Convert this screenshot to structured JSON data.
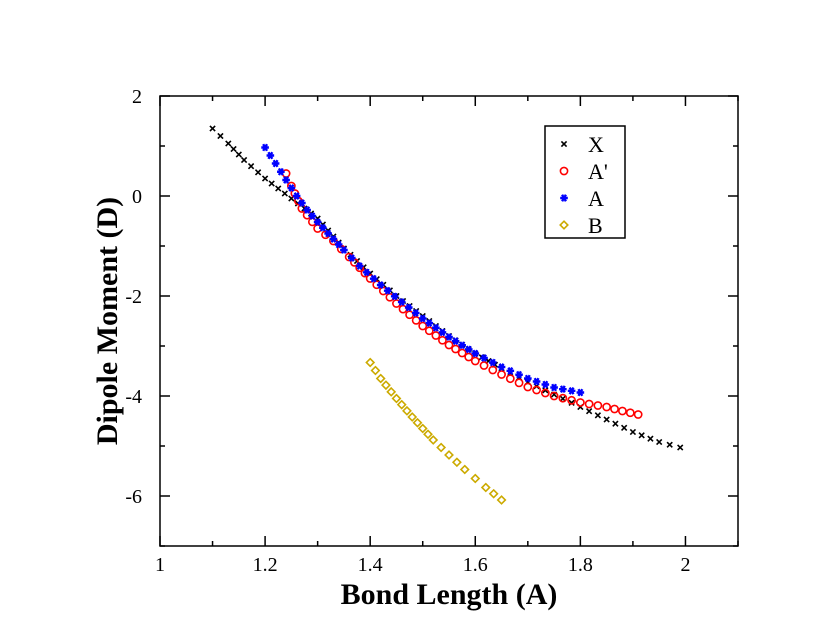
{
  "chart_data": {
    "type": "scatter",
    "title": "",
    "xlabel": "Bond Length (A)",
    "ylabel": "Dipole Moment (D)",
    "xlim": [
      1.0,
      2.1
    ],
    "ylim": [
      -7,
      2
    ],
    "xticks": [
      1,
      1.2,
      1.4,
      1.6,
      1.8,
      2
    ],
    "xtick_labels": [
      "1",
      "1.2",
      "1.4",
      "1.6",
      "1.8",
      "2"
    ],
    "yticks": [
      -6,
      -4,
      -2,
      0,
      2
    ],
    "ytick_labels": [
      "-6",
      "-4",
      "-2",
      "0",
      "2"
    ],
    "grid": false,
    "legend_position": "top-right",
    "series": [
      {
        "name": "X",
        "marker": "x-cross",
        "color": "#000000",
        "x": [
          1.1,
          1.13,
          1.16,
          1.2,
          1.25,
          1.3,
          1.35,
          1.4,
          1.45,
          1.5,
          1.55,
          1.6,
          1.65,
          1.7,
          1.75,
          1.8,
          1.85,
          1.9,
          1.95,
          1.99
        ],
        "y": [
          1.35,
          1.05,
          0.72,
          0.35,
          -0.05,
          -0.45,
          -1.05,
          -1.55,
          -2.0,
          -2.4,
          -2.8,
          -3.15,
          -3.45,
          -3.72,
          -3.97,
          -4.22,
          -4.47,
          -4.72,
          -4.92,
          -5.03
        ]
      },
      {
        "name": "A'",
        "marker": "open-circle",
        "color": "#ff0000",
        "x": [
          1.24,
          1.25,
          1.27,
          1.3,
          1.33,
          1.36,
          1.4,
          1.45,
          1.5,
          1.55,
          1.6,
          1.65,
          1.7,
          1.75,
          1.8,
          1.85,
          1.88,
          1.91
        ],
        "y": [
          0.45,
          0.2,
          -0.25,
          -0.65,
          -0.9,
          -1.22,
          -1.65,
          -2.15,
          -2.6,
          -2.98,
          -3.3,
          -3.57,
          -3.82,
          -4.0,
          -4.13,
          -4.22,
          -4.3,
          -4.37
        ]
      },
      {
        "name": "A",
        "marker": "filled-star",
        "color": "#0000ff",
        "x": [
          1.2,
          1.22,
          1.24,
          1.26,
          1.28,
          1.3,
          1.32,
          1.35,
          1.38,
          1.42,
          1.46,
          1.5,
          1.55,
          1.6,
          1.65,
          1.7,
          1.75,
          1.8
        ],
        "y": [
          0.97,
          0.65,
          0.32,
          0.0,
          -0.28,
          -0.52,
          -0.75,
          -1.08,
          -1.4,
          -1.78,
          -2.12,
          -2.45,
          -2.82,
          -3.15,
          -3.42,
          -3.65,
          -3.83,
          -3.93
        ]
      },
      {
        "name": "B",
        "marker": "open-diamond",
        "color": "#ccaa00",
        "x": [
          1.4,
          1.42,
          1.45,
          1.48,
          1.5,
          1.52,
          1.55,
          1.58,
          1.6,
          1.62,
          1.65
        ],
        "y": [
          -3.33,
          -3.65,
          -4.05,
          -4.42,
          -4.65,
          -4.88,
          -5.18,
          -5.47,
          -5.65,
          -5.83,
          -6.08
        ]
      }
    ]
  }
}
